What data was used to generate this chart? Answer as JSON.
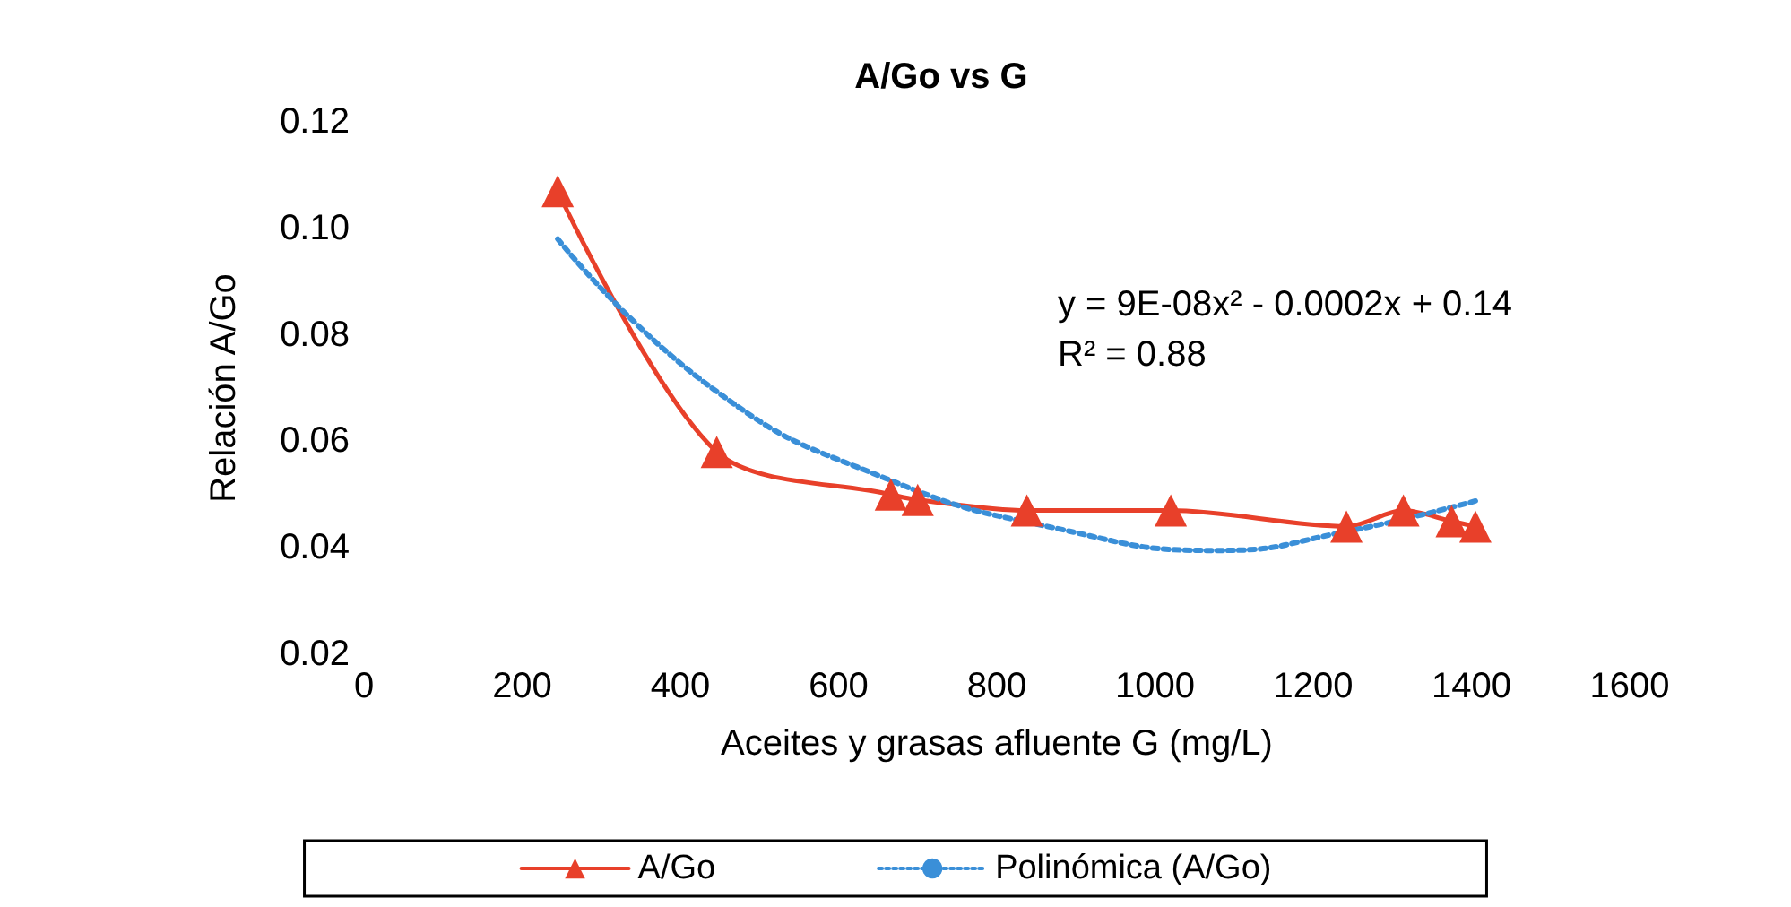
{
  "chart_data": {
    "type": "line",
    "title": "A/Go vs G",
    "xlabel": "Aceites y grasas afluente G (mg/L)",
    "ylabel": "Relación A/Go",
    "xlim": [
      0,
      1600
    ],
    "xticks": [
      0,
      200,
      400,
      600,
      800,
      1000,
      1200,
      1400,
      1600
    ],
    "ylim": [
      0.02,
      0.12
    ],
    "yticks": [
      {
        "value": 0.02,
        "label": "0.02"
      },
      {
        "value": 0.04,
        "label": "0.04"
      },
      {
        "value": 0.06,
        "label": "0.06"
      },
      {
        "value": 0.08,
        "label": "0.08"
      },
      {
        "value": 0.1,
        "label": "0.10"
      },
      {
        "value": 0.12,
        "label": "0.12"
      }
    ],
    "grid": false,
    "legend": "bottom",
    "annotations": [
      "y = 9E-08x² - 0.0002x + 0.14",
      "R² = 0.88"
    ],
    "series": [
      {
        "name": "A/Go",
        "color": "#e8402a",
        "marker": "triangle",
        "line_style": "solid",
        "x": [
          245,
          446,
          666,
          700,
          838,
          1020,
          1242,
          1314,
          1375,
          1405
        ],
        "values": [
          0.107,
          0.058,
          0.05,
          0.049,
          0.047,
          0.047,
          0.044,
          0.047,
          0.045,
          0.044
        ]
      },
      {
        "name": "Polinómica (A/Go)",
        "color": "#3a8fd8",
        "marker": "none",
        "line_style": "dotted",
        "x": [
          245,
          440,
          660,
          880,
          1080,
          1240,
          1410
        ],
        "values": [
          0.098,
          0.07,
          0.053,
          0.0435,
          0.0395,
          0.043,
          0.049
        ]
      }
    ]
  }
}
